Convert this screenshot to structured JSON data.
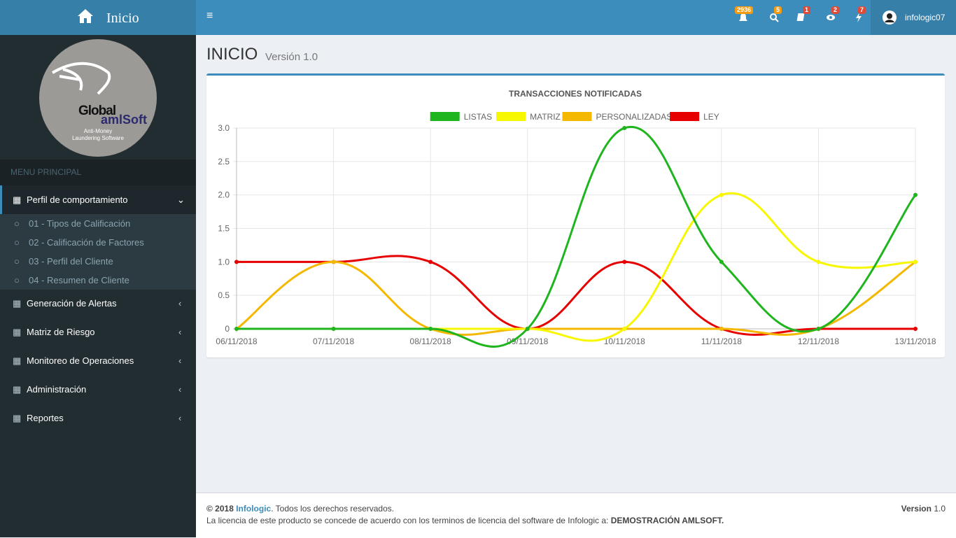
{
  "header": {
    "brand": "Inicio",
    "badges": [
      "2936",
      "5",
      "1",
      "2",
      "7"
    ],
    "user": "infologic07"
  },
  "sidebar": {
    "logo": {
      "line1": "Global",
      "line2": "amlSoft",
      "tagline1": "Anti-Money",
      "tagline2": "Laundering Software"
    },
    "menu_header": "MENU PRINCIPAL",
    "active_item": "Perfil de comportamiento",
    "subitems": [
      "01 - Tipos de Calificación",
      "02 - Calificación de Factores",
      "03 - Perfil del Cliente",
      "04 - Resumen de Cliente"
    ],
    "items": [
      "Generación de Alertas",
      "Matriz de Riesgo",
      "Monitoreo de Operaciones",
      "Administración",
      "Reportes"
    ]
  },
  "page": {
    "title": "INICIO",
    "subtitle": "Versión 1.0"
  },
  "chart_data": {
    "type": "line",
    "title": "TRANSACCIONES NOTIFICADAS",
    "categories": [
      "06/11/2018",
      "07/11/2018",
      "08/11/2018",
      "09/11/2018",
      "10/11/2018",
      "11/11/2018",
      "12/11/2018",
      "13/11/2018"
    ],
    "series": [
      {
        "name": "LISTAS",
        "color": "#1fb51f",
        "values": [
          0,
          0,
          0,
          0,
          3,
          1,
          0,
          2
        ]
      },
      {
        "name": "MATRIZ",
        "color": "#f7f700",
        "values": [
          0,
          0,
          0,
          0,
          0,
          2,
          1,
          1
        ]
      },
      {
        "name": "PERSONALIZADAS",
        "color": "#f5b800",
        "values": [
          0,
          1,
          0,
          0,
          0,
          0,
          0,
          1
        ]
      },
      {
        "name": "LEY",
        "color": "#e60000",
        "values": [
          1,
          1,
          1,
          0,
          1,
          0,
          0,
          0
        ]
      }
    ],
    "ylim": [
      0,
      3
    ],
    "yticks": [
      0,
      {
        "value": 0.5,
        "label": "0.5"
      },
      {
        "value": 1,
        "label": "1.0"
      },
      1.5,
      {
        "value": 2,
        "label": "2.0"
      },
      2.5,
      {
        "value": 3,
        "label": "3.0"
      }
    ],
    "grid": true
  },
  "footer": {
    "copyright": "© 2018",
    "company": "Infologic",
    "rights": ". Todos los derechos reservados.",
    "license": "La licencia de este producto se concede de acuerdo con los terminos de licencia del software de Infologic a:",
    "licensee": "DEMOSTRACIÓN AMLSOFT.",
    "version_label": "Version",
    "version": "1.0"
  }
}
